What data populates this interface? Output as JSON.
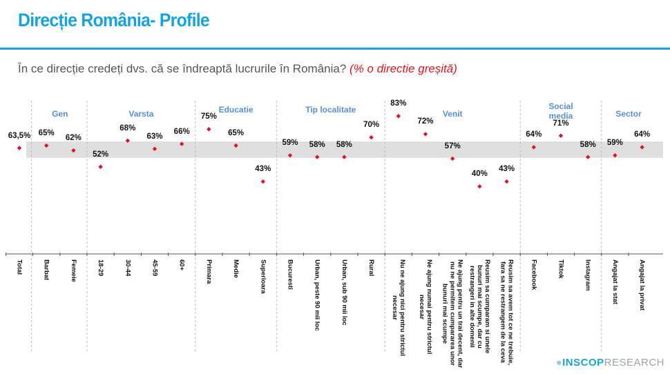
{
  "header": {
    "title": "Direcție România- Profile",
    "question": "În ce direcție credeți dvs. că se îndreaptă lucrurile în România?",
    "question_note": "(% o directie greșită)"
  },
  "logo": {
    "brand": "INSCOP",
    "suffix": "RESEARCH"
  },
  "chart_data": {
    "type": "scatter",
    "ylim": [
      0,
      92
    ],
    "grid": false,
    "reference_band": [
      57.5,
      67.5
    ],
    "colors": {
      "marker": "#e0141e",
      "band": "#d9d9d9",
      "group_label": "#5b8fd3"
    },
    "groups": [
      {
        "name": "",
        "categories": [
          "Total"
        ],
        "values": [
          63.5
        ]
      },
      {
        "name": "Gen",
        "categories": [
          "Barbat",
          "Femeie"
        ],
        "values": [
          65,
          62
        ]
      },
      {
        "name": "Varsta",
        "categories": [
          "18-29",
          "30-44",
          "45-59",
          "60+"
        ],
        "values": [
          52,
          68,
          63,
          66
        ]
      },
      {
        "name": "Educatie",
        "categories": [
          "Primara",
          "Medie",
          "Superioara"
        ],
        "values": [
          75,
          65,
          43
        ]
      },
      {
        "name": "Tip localitate",
        "categories": [
          "Bucuresti",
          "Urban, peste 90 mii loc",
          "Urban, sub 90 mii loc",
          "Rural"
        ],
        "values": [
          59,
          58,
          58,
          70
        ]
      },
      {
        "name": "Venit",
        "categories": [
          "Nu ne ajung nici pentru strictul\nnecesar",
          "Ne ajung numai pentru strictul\nnecesar",
          "Ne ajung pentru un trai decent, dar\nnu ne permitem cumpararea unor\nbunuri mai scumpe",
          "Reusim sa cumparam si unele\nbunuri mai scumpe, dar cu\nrestrangeri in alte domenii",
          "Reusim sa avem tot ce ne trebuie,\nfara sa ne restrangem de la ceva"
        ],
        "values": [
          83,
          72,
          57,
          40,
          43
        ]
      },
      {
        "name": "Social\nmedia",
        "categories": [
          "Facebook",
          "Tiktok",
          "Instagram"
        ],
        "values": [
          64,
          71,
          58
        ]
      },
      {
        "name": "Sector",
        "categories": [
          "Angajat la stat",
          "Angajat la privat"
        ],
        "values": [
          59,
          64
        ]
      }
    ]
  }
}
